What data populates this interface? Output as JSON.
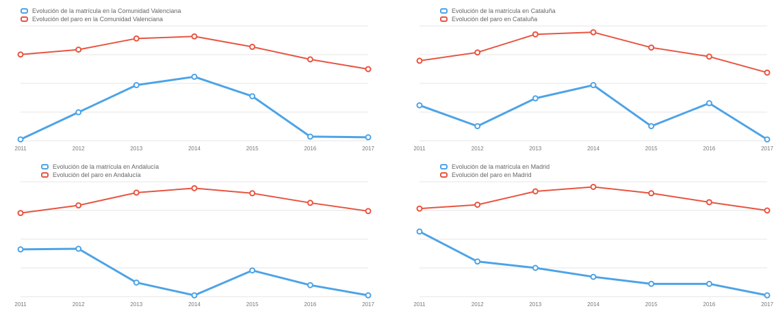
{
  "chart_data": [
    {
      "type": "line",
      "categories": [
        "2011",
        "2012",
        "2013",
        "2014",
        "2015",
        "2016",
        "2017"
      ],
      "series": [
        {
          "name": "Evolución de la matrícula en la Comunidad Valenciana",
          "color": "#4da3e6",
          "values": [
            2,
            41,
            80,
            92,
            64,
            6,
            5
          ]
        },
        {
          "name": "Evolución del paro en la Comunidad Valenciana",
          "color": "#e8533f",
          "values": [
            124,
            131,
            147,
            150,
            135,
            117,
            103
          ]
        }
      ],
      "ylim": [
        0,
        165
      ],
      "grid": true,
      "legend": "top-left"
    },
    {
      "type": "line",
      "categories": [
        "2011",
        "2012",
        "2013",
        "2014",
        "2015",
        "2016",
        "2017"
      ],
      "series": [
        {
          "name": "Evolución de la matrícula en Cataluña",
          "color": "#4da3e6",
          "values": [
            51,
            21,
            61,
            80,
            21,
            54,
            2
          ]
        },
        {
          "name": "Evolución del paro en Cataluña",
          "color": "#e8533f",
          "values": [
            115,
            127,
            153,
            156,
            134,
            121,
            98
          ]
        }
      ],
      "ylim": [
        0,
        165
      ],
      "grid": true,
      "legend": "top-left"
    },
    {
      "type": "line",
      "categories": [
        "2011",
        "2012",
        "2013",
        "2014",
        "2015",
        "2016",
        "2017"
      ],
      "series": [
        {
          "name": "Evolución de la matrícula en Andalucía",
          "color": "#4da3e6",
          "values": [
            74,
            75,
            22,
            2,
            41,
            18,
            2
          ]
        },
        {
          "name": "Evolución del paro en Andalucía",
          "color": "#e8533f",
          "values": [
            131,
            143,
            163,
            170,
            162,
            147,
            134
          ]
        }
      ],
      "ylim": [
        0,
        180
      ],
      "grid": true,
      "legend": "top-left"
    },
    {
      "type": "line",
      "categories": [
        "2011",
        "2012",
        "2013",
        "2014",
        "2015",
        "2016",
        "2017"
      ],
      "series": [
        {
          "name": "Evolución de la matrícula en Madrid",
          "color": "#4da3e6",
          "values": [
            102,
            55,
            45,
            31,
            20,
            20,
            2
          ]
        },
        {
          "name": "Evolución del paro en Madrid",
          "color": "#e8533f",
          "values": [
            138,
            144,
            165,
            172,
            162,
            148,
            135
          ]
        }
      ],
      "ylim": [
        0,
        180
      ],
      "grid": true,
      "legend": "top-left"
    }
  ]
}
